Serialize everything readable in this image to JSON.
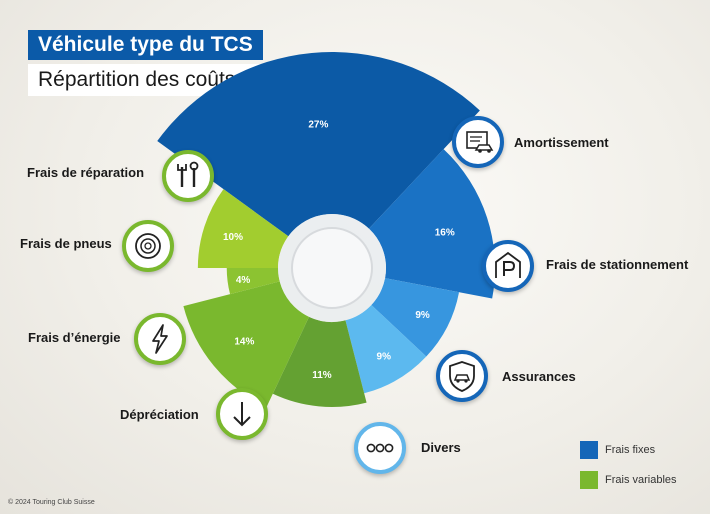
{
  "header": {
    "title": "Véhicule type du TCS",
    "subtitle": "Répartition des coûts 2024"
  },
  "chart_data": {
    "type": "pie",
    "title": "Répartition des coûts 2024",
    "slices": [
      {
        "label": "Amortissement",
        "value": 27,
        "display": "27%",
        "group": "Frais fixes",
        "color": "#0c5aa6",
        "icon": "car-document-icon"
      },
      {
        "label": "Frais de stationnement",
        "value": 16,
        "display": "16%",
        "group": "Frais fixes",
        "color": "#1a72c4",
        "icon": "parking-icon"
      },
      {
        "label": "Assurances",
        "value": 9,
        "display": "9%",
        "group": "Frais fixes",
        "color": "#3796df",
        "icon": "shield-car-icon"
      },
      {
        "label": "Divers",
        "value": 9,
        "display": "9%",
        "group": "Frais fixes",
        "color": "#5cb9ef",
        "icon": "dots-icon"
      },
      {
        "label": "Dépréciation",
        "value": 11,
        "display": "11%",
        "group": "Frais variables",
        "color": "#64a132",
        "icon": "arrow-down-icon"
      },
      {
        "label": "Frais d’énergie",
        "value": 14,
        "display": "14%",
        "group": "Frais variables",
        "color": "#7ab82e",
        "icon": "lightning-icon"
      },
      {
        "label": "Frais de pneus",
        "value": 4,
        "display": "4%",
        "group": "Frais variables",
        "color": "#8cc331",
        "icon": "tire-icon"
      },
      {
        "label": "Frais de réparation",
        "value": 10,
        "display": "10%",
        "group": "Frais variables",
        "color": "#a2cd2f",
        "icon": "tools-icon"
      }
    ],
    "legend": [
      {
        "label": "Frais fixes",
        "color": "#1566b8"
      },
      {
        "label": "Frais variables",
        "color": "#7ab82e"
      }
    ],
    "legend_placement": "bottom-right"
  },
  "footer": {
    "copyright": "© 2024 Touring Club Suisse"
  }
}
